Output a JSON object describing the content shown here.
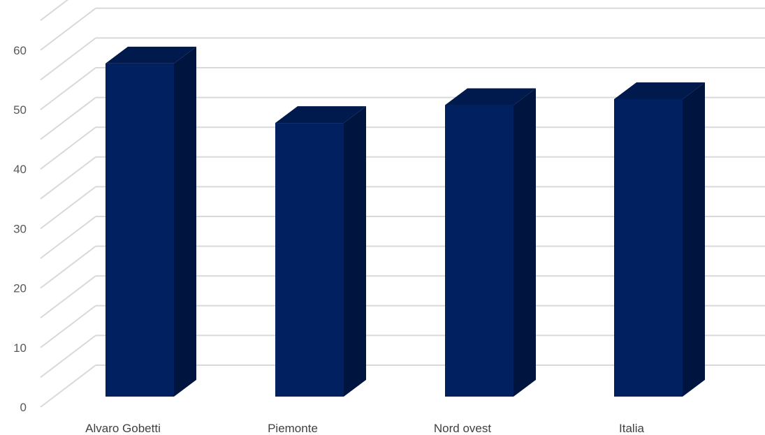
{
  "chart_data": {
    "type": "bar",
    "style": "3d-column",
    "categories": [
      "Alvaro Gobetti",
      "Piemonte",
      "Nord ovest",
      "Italia"
    ],
    "series": [
      {
        "values": [
          56,
          46,
          49,
          50
        ]
      }
    ],
    "yticks": [
      "0",
      "10",
      "20",
      "30",
      "40",
      "50",
      "60"
    ],
    "ylim": [
      0,
      65
    ],
    "grid": true,
    "legend": "none",
    "colors": {
      "front": "#002060",
      "side": "#001440",
      "top": "#001a4d",
      "grid": "#d9d9d9",
      "text": "#595959"
    }
  }
}
